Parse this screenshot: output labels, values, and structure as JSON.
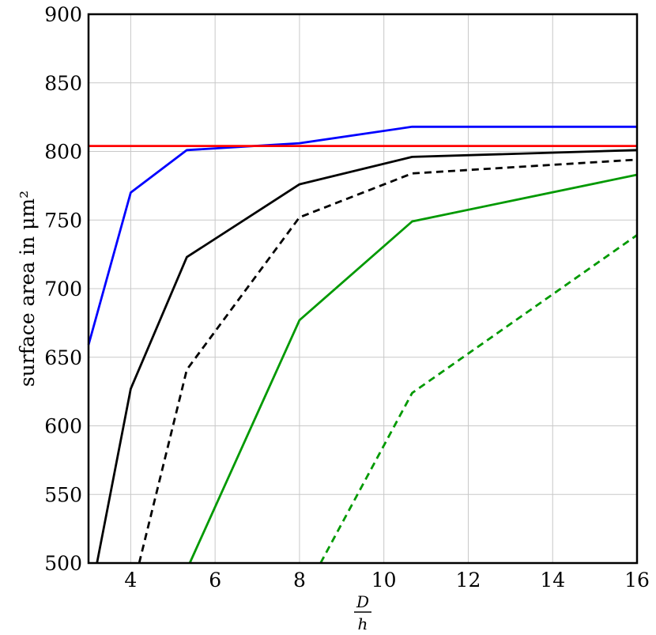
{
  "chart_data": {
    "type": "line",
    "xlabel": {
      "numerator": "D",
      "denominator": "h"
    },
    "ylabel": "surface area in μm²",
    "xlim": [
      3,
      16
    ],
    "ylim": [
      500,
      900
    ],
    "xticks": [
      4,
      6,
      8,
      10,
      12,
      14,
      16
    ],
    "yticks": [
      500,
      550,
      600,
      650,
      700,
      750,
      800,
      850,
      900
    ],
    "grid": true,
    "series": [
      {
        "color": "#0000ff",
        "dash": "solid",
        "x": [
          3.0,
          4.0,
          5.33,
          8.0,
          10.67,
          16.0
        ],
        "y": [
          659,
          770,
          801,
          806,
          818,
          818
        ]
      },
      {
        "color": "#ff0000",
        "dash": "solid",
        "x": [
          3.0,
          16.0
        ],
        "y": [
          804,
          804
        ]
      },
      {
        "color": "#000000",
        "dash": "solid",
        "x": [
          3.2,
          4.0,
          5.33,
          8.0,
          10.67,
          16.0
        ],
        "y": [
          500,
          627,
          723,
          776,
          796,
          801
        ]
      },
      {
        "color": "#000000",
        "dash": "dashed",
        "x": [
          4.2,
          5.33,
          8.0,
          10.67,
          16.0
        ],
        "y": [
          500,
          641,
          752,
          784,
          794
        ]
      },
      {
        "color": "#009900",
        "dash": "solid",
        "x": [
          5.4,
          8.0,
          10.67,
          16.0
        ],
        "y": [
          500,
          677,
          749,
          783
        ]
      },
      {
        "color": "#009900",
        "dash": "dashed",
        "x": [
          8.5,
          10.67,
          16.0
        ],
        "y": [
          500,
          624,
          739
        ]
      }
    ]
  }
}
